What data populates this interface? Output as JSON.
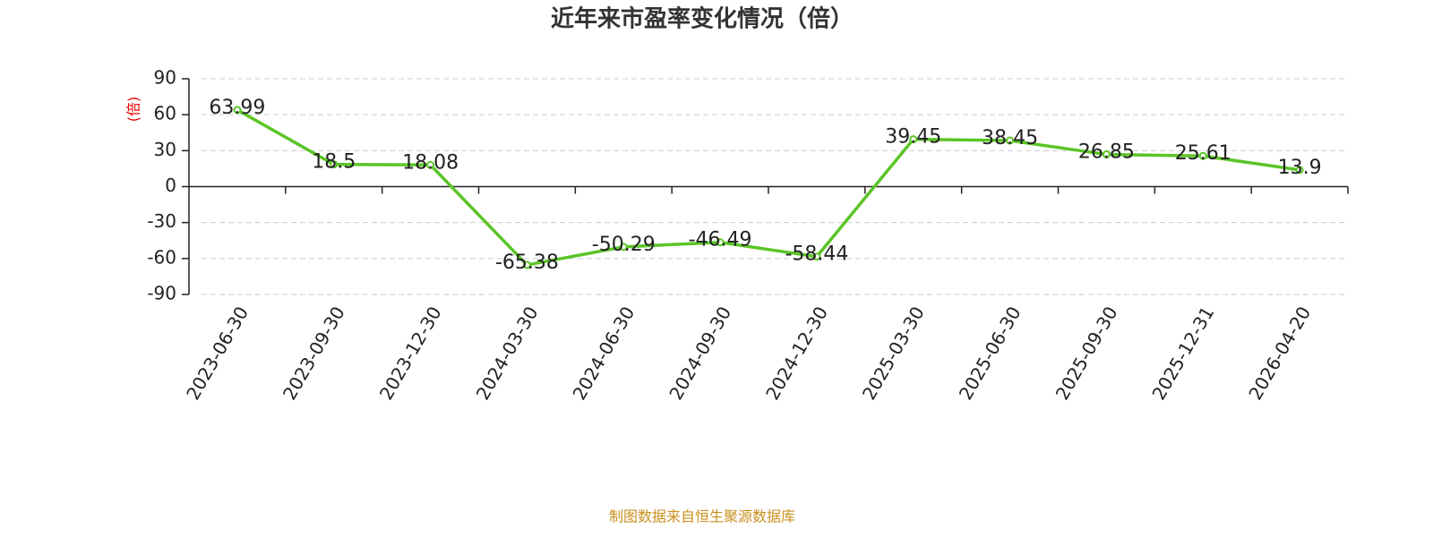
{
  "chart_data": {
    "type": "line",
    "title": "近年来市盈率变化情况（倍）",
    "y_label": "(倍)",
    "categories": [
      "2023-06-30",
      "2023-09-30",
      "2023-12-30",
      "2024-03-30",
      "2024-06-30",
      "2024-09-30",
      "2024-12-30",
      "2025-03-30",
      "2025-06-30",
      "2025-09-30",
      "2025-12-31",
      "2026-04-20"
    ],
    "values": [
      63.99,
      18.5,
      18.08,
      -65.38,
      -50.29,
      -46.49,
      -58.44,
      39.45,
      38.45,
      26.85,
      25.61,
      13.9
    ],
    "color": "#5ac526",
    "ylim": [
      -90,
      90
    ],
    "yticks": [
      -90,
      -60,
      -30,
      0,
      30,
      60,
      90
    ],
    "grid": true,
    "source": "制图数据来自恒生聚源数据库"
  }
}
